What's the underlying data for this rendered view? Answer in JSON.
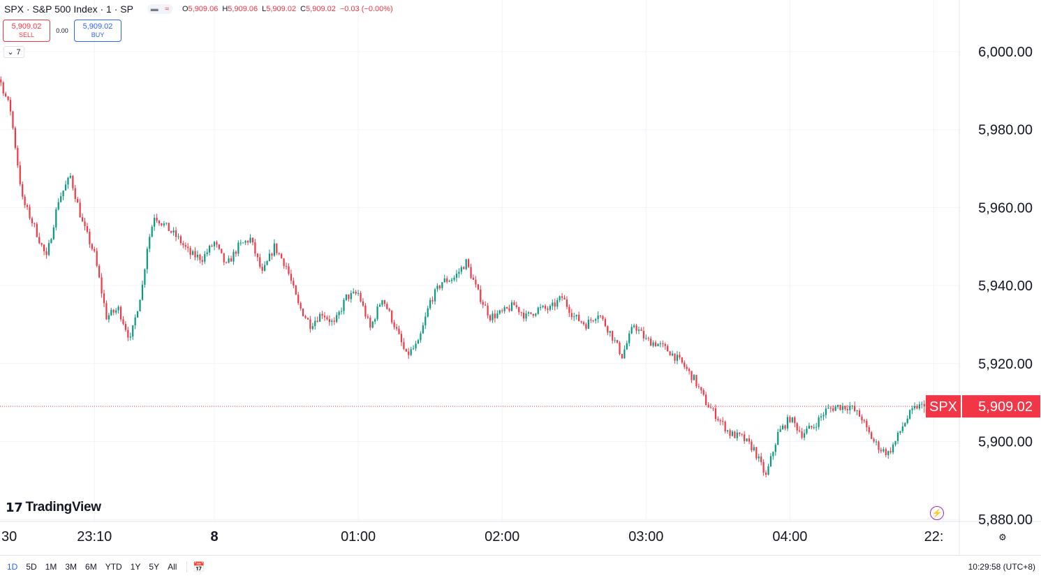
{
  "header": {
    "symbol_title": "SPX · S&P 500 Index · 1 · SP",
    "ohlc": [
      {
        "k": "O",
        "v": "5,909.06"
      },
      {
        "k": "H",
        "v": "5,909.06"
      },
      {
        "k": "L",
        "v": "5,909.02"
      },
      {
        "k": "C",
        "v": "5,909.02"
      },
      {
        "k": "",
        "v": "−0.03 (−0.00%)"
      }
    ],
    "toggle_icons": [
      "minus-icon",
      "wave-icon"
    ]
  },
  "trade": {
    "sell_price": "5,909.02",
    "sell_label": "SELL",
    "spread": "0.00",
    "buy_price": "5,909.02",
    "buy_label": "BUY"
  },
  "indicator_toggle": {
    "label": "7",
    "icon": "chevron-down-icon"
  },
  "logo": {
    "text": "TradingView",
    "mark": "17"
  },
  "bottom": {
    "ranges": [
      "1D",
      "5D",
      "1M",
      "3M",
      "6M",
      "YTD",
      "1Y",
      "5Y",
      "All"
    ],
    "active_range": "1D",
    "clock": "10:29:58 (UTC+8)"
  },
  "colors": {
    "up": "#089981",
    "down": "#f23645",
    "accent": "#2962ff",
    "grid": "#f0f3fa",
    "price_line": "#f23645"
  },
  "chart_data": {
    "type": "candlestick",
    "symbol": "SPX",
    "last_price": "5,909.02",
    "last_price_value": 5909.02,
    "y_ticks": [
      {
        "value": 6000,
        "label": "6,000.00"
      },
      {
        "value": 5980,
        "label": "5,980.00"
      },
      {
        "value": 5960,
        "label": "5,960.00"
      },
      {
        "value": 5940,
        "label": "5,940.00"
      },
      {
        "value": 5920,
        "label": "5,920.00"
      },
      {
        "value": 5900,
        "label": "5,900.00"
      },
      {
        "value": 5880,
        "label": "5,880.00"
      }
    ],
    "ylim": [
      5880,
      6000
    ],
    "x_ticks": [
      {
        "t": -90,
        "label": "30",
        "bold": false
      },
      {
        "t": -50,
        "label": "23:10",
        "bold": false
      },
      {
        "t": 0,
        "label": "8",
        "bold": true
      },
      {
        "t": 60,
        "label": "01:00",
        "bold": false
      },
      {
        "t": 120,
        "label": "02:00",
        "bold": false
      },
      {
        "t": 180,
        "label": "03:00",
        "bold": false
      },
      {
        "t": 240,
        "label": "04:00",
        "bold": false
      },
      {
        "t": 300,
        "label": "22:",
        "bold": false
      }
    ],
    "path_minutes": [
      -102,
      -99,
      -96,
      -93,
      -89,
      -85,
      -80,
      -75,
      -70,
      -65,
      -60,
      -55,
      -50,
      -45,
      -40,
      -35,
      -30,
      -28,
      -25,
      -20,
      -15,
      -10,
      -5,
      0,
      5,
      10,
      15,
      20,
      25,
      30,
      35,
      40,
      45,
      50,
      55,
      60,
      65,
      70,
      75,
      80,
      85,
      90,
      95,
      100,
      105,
      110,
      115,
      120,
      125,
      130,
      135,
      140,
      145,
      150,
      155,
      160,
      165,
      170,
      175,
      180,
      185,
      190,
      195,
      200,
      205,
      210,
      215,
      220,
      225,
      230,
      235,
      240,
      245,
      250,
      255,
      260,
      265,
      270,
      272,
      275,
      278,
      281,
      284,
      287,
      290,
      293,
      296
    ],
    "path_prices": [
      5999,
      5991,
      5986,
      5996,
      5992,
      5985,
      5962,
      5955,
      5947,
      5962,
      5968,
      5956,
      5948,
      5932,
      5934,
      5926,
      5940,
      5950,
      5958,
      5955,
      5952,
      5948,
      5947,
      5951,
      5945,
      5950,
      5952,
      5943,
      5950,
      5945,
      5935,
      5930,
      5933,
      5930,
      5937,
      5938,
      5929,
      5937,
      5930,
      5922,
      5925,
      5936,
      5941,
      5942,
      5946,
      5938,
      5932,
      5933,
      5935,
      5932,
      5934,
      5934,
      5937,
      5932,
      5930,
      5933,
      5928,
      5922,
      5930,
      5926,
      5925,
      5923,
      5920,
      5916,
      5910,
      5906,
      5902,
      5901,
      5898,
      5891,
      5902,
      5906,
      5902,
      5904,
      5908,
      5909.02,
      5909,
      5906,
      5903,
      5900,
      5898,
      5897,
      5900,
      5904,
      5907,
      5909,
      5909.02
    ]
  }
}
